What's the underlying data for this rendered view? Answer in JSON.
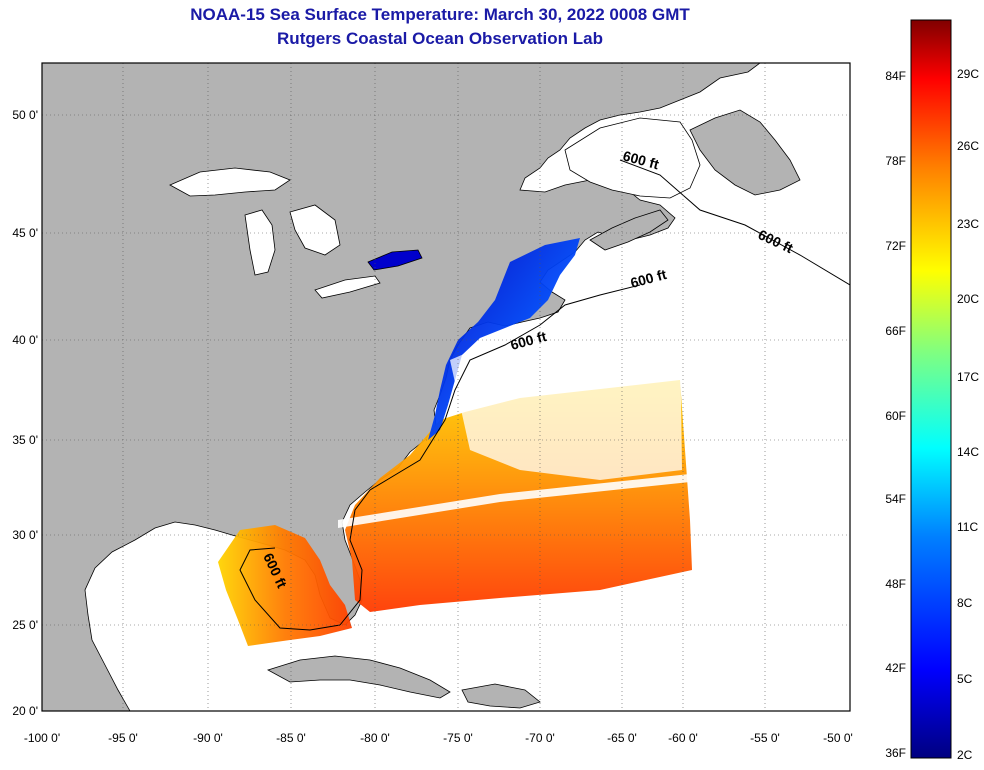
{
  "title_line1": "NOAA-15 Sea Surface Temperature:  March 30, 2022 0008 GMT",
  "title_line2": "Rutgers Coastal Ocean Observation Lab",
  "lon_ticks": [
    "-100 0'",
    "-95 0'",
    "-90 0'",
    "-85 0'",
    "-80 0'",
    "-75 0'",
    "-70 0'",
    "-65 0'",
    "-60 0'",
    "-55 0'",
    "-50 0'"
  ],
  "lat_ticks": [
    "50 0'",
    "45 0'",
    "40 0'",
    "35 0'",
    "30 0'",
    "25 0'",
    "20 0'"
  ],
  "contour_label": "600 ft",
  "colorbar": {
    "fahrenheit": [
      "84F",
      "78F",
      "72F",
      "66F",
      "60F",
      "54F",
      "48F",
      "42F",
      "36F"
    ],
    "celsius": [
      "29C",
      "26C",
      "23C",
      "20C",
      "17C",
      "14C",
      "11C",
      "8C",
      "5C",
      "2C"
    ],
    "colors": [
      "#000080",
      "#0000ff",
      "#0080ff",
      "#00ffff",
      "#80ff80",
      "#ffff00",
      "#ff8000",
      "#ff0000",
      "#800000"
    ]
  },
  "colors": {
    "title": "#1a1aa6",
    "land": "#b3b3b3",
    "ocean": "#ffffff"
  }
}
